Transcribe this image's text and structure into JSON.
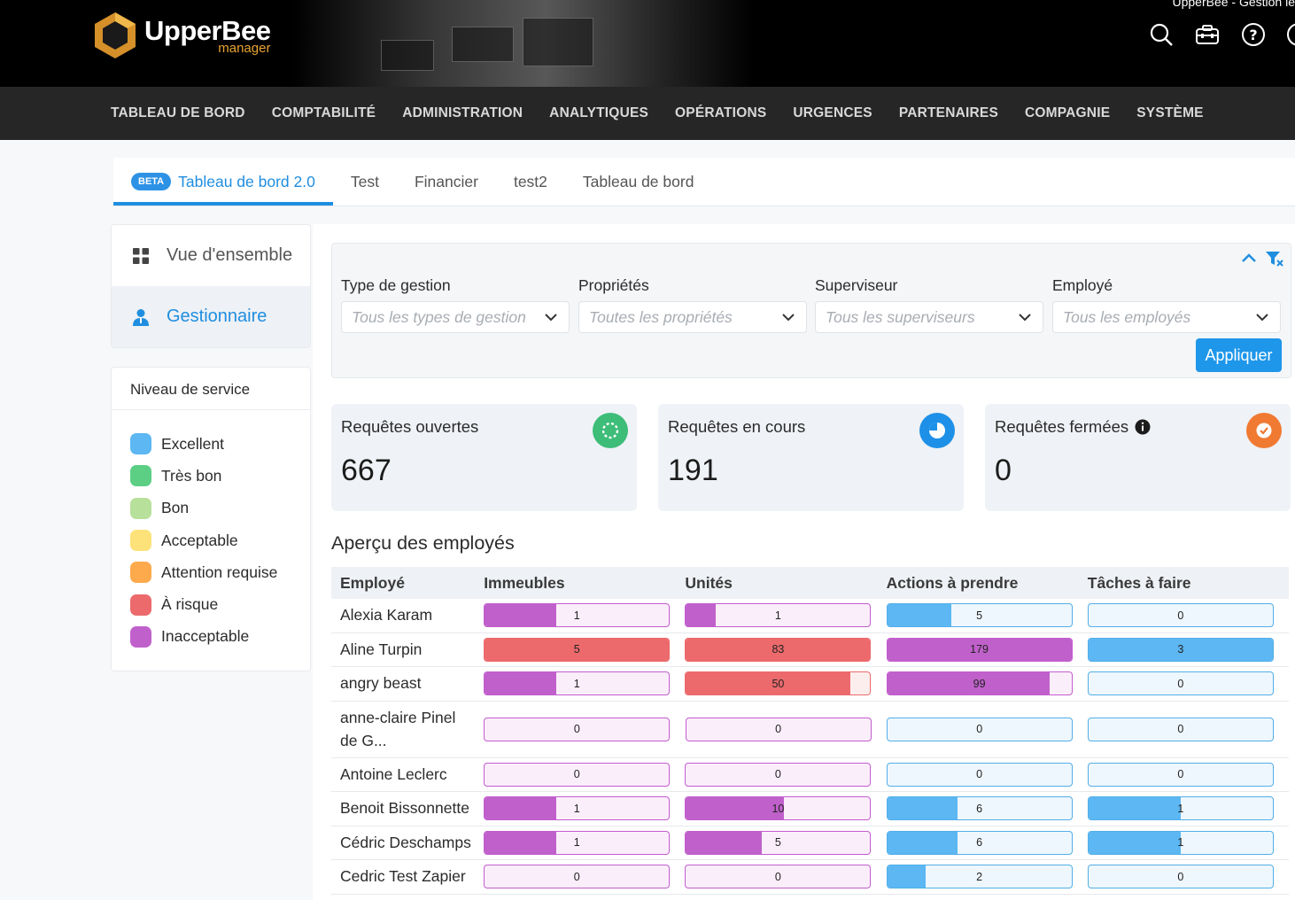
{
  "app": {
    "window_title": "UpperBee - Gestion le",
    "logo_main": "UpperBee",
    "logo_sub": "manager"
  },
  "header_icons": [
    "search-icon",
    "toolbox-icon",
    "help-icon",
    "profile-icon"
  ],
  "nav": [
    "TABLEAU DE BORD",
    "COMPTABILITÉ",
    "ADMINISTRATION",
    "ANALYTIQUES",
    "OPÉRATIONS",
    "URGENCES",
    "PARTENAIRES",
    "COMPAGNIE",
    "SYSTÈME"
  ],
  "tabs": {
    "badge": "BETA",
    "items": [
      "Tableau de bord 2.0",
      "Test",
      "Financier",
      "test2",
      "Tableau de bord"
    ],
    "active": 0
  },
  "side_menu": {
    "overview": "Vue d'ensemble",
    "manager": "Gestionnaire"
  },
  "legend": {
    "title": "Niveau de service",
    "items": [
      {
        "label": "Excellent",
        "color": "#5cb7f2"
      },
      {
        "label": "Très bon",
        "color": "#5ccf85"
      },
      {
        "label": "Bon",
        "color": "#b7e09b"
      },
      {
        "label": "Acceptable",
        "color": "#fde27a"
      },
      {
        "label": "Attention requise",
        "color": "#fcaa4c"
      },
      {
        "label": "À risque",
        "color": "#ec6a6c"
      },
      {
        "label": "Inacceptable",
        "color": "#c061cb"
      }
    ]
  },
  "filters": {
    "type": {
      "label": "Type de gestion",
      "placeholder": "Tous les types de gestion"
    },
    "properties": {
      "label": "Propriétés",
      "placeholder": "Toutes les propriétés"
    },
    "supervisor": {
      "label": "Superviseur",
      "placeholder": "Tous les superviseurs"
    },
    "employee": {
      "label": "Employé",
      "placeholder": "Tous les employés"
    },
    "apply": "Appliquer"
  },
  "kpis": {
    "open": {
      "title": "Requêtes ouvertes",
      "value": "667",
      "color": "#3dbd78"
    },
    "in_progress": {
      "title": "Requêtes en cours",
      "value": "191",
      "color": "#1e90e8"
    },
    "closed": {
      "title": "Requêtes fermées",
      "value": "0",
      "color": "#f07a32"
    }
  },
  "employees": {
    "title": "Aperçu des employés",
    "columns": [
      "Employé",
      "Immeubles",
      "Unités",
      "Actions à prendre",
      "Tâches à faire"
    ],
    "rows": [
      {
        "name": "Alexia Karam",
        "cells": [
          {
            "v": "1",
            "f": 0.39,
            "c": "purple"
          },
          {
            "v": "1",
            "f": 0.16,
            "c": "purple"
          },
          {
            "v": "5",
            "f": 0.35,
            "c": "blue"
          },
          {
            "v": "0",
            "f": 0,
            "c": "blue"
          }
        ]
      },
      {
        "name": "Aline Turpin",
        "cells": [
          {
            "v": "5",
            "f": 1,
            "c": "red"
          },
          {
            "v": "83",
            "f": 1,
            "c": "red"
          },
          {
            "v": "179",
            "f": 1,
            "c": "purple"
          },
          {
            "v": "3",
            "f": 1,
            "c": "blue"
          }
        ]
      },
      {
        "name": "angry beast",
        "cells": [
          {
            "v": "1",
            "f": 0.39,
            "c": "purple"
          },
          {
            "v": "50",
            "f": 0.89,
            "c": "red"
          },
          {
            "v": "99",
            "f": 0.88,
            "c": "purple"
          },
          {
            "v": "0",
            "f": 0,
            "c": "blue"
          }
        ]
      },
      {
        "name": "anne-claire Pinel de G...",
        "cells": [
          {
            "v": "0",
            "f": 0,
            "c": "purple"
          },
          {
            "v": "0",
            "f": 0,
            "c": "purple"
          },
          {
            "v": "0",
            "f": 0,
            "c": "blue"
          },
          {
            "v": "0",
            "f": 0,
            "c": "blue"
          }
        ]
      },
      {
        "name": "Antoine Leclerc",
        "cells": [
          {
            "v": "0",
            "f": 0,
            "c": "purple"
          },
          {
            "v": "0",
            "f": 0,
            "c": "purple"
          },
          {
            "v": "0",
            "f": 0,
            "c": "blue"
          },
          {
            "v": "0",
            "f": 0,
            "c": "blue"
          }
        ]
      },
      {
        "name": "Benoit Bissonnette",
        "cells": [
          {
            "v": "1",
            "f": 0.39,
            "c": "purple"
          },
          {
            "v": "10",
            "f": 0.53,
            "c": "purple"
          },
          {
            "v": "6",
            "f": 0.38,
            "c": "blue"
          },
          {
            "v": "1",
            "f": 0.5,
            "c": "blue"
          }
        ]
      },
      {
        "name": "Cédric Deschamps",
        "cells": [
          {
            "v": "1",
            "f": 0.39,
            "c": "purple"
          },
          {
            "v": "5",
            "f": 0.41,
            "c": "purple"
          },
          {
            "v": "6",
            "f": 0.38,
            "c": "blue"
          },
          {
            "v": "1",
            "f": 0.5,
            "c": "blue"
          }
        ]
      },
      {
        "name": "Cedric Test Zapier",
        "cells": [
          {
            "v": "0",
            "f": 0,
            "c": "purple"
          },
          {
            "v": "0",
            "f": 0,
            "c": "purple"
          },
          {
            "v": "2",
            "f": 0.21,
            "c": "blue"
          },
          {
            "v": "0",
            "f": 0,
            "c": "blue"
          }
        ]
      }
    ]
  }
}
